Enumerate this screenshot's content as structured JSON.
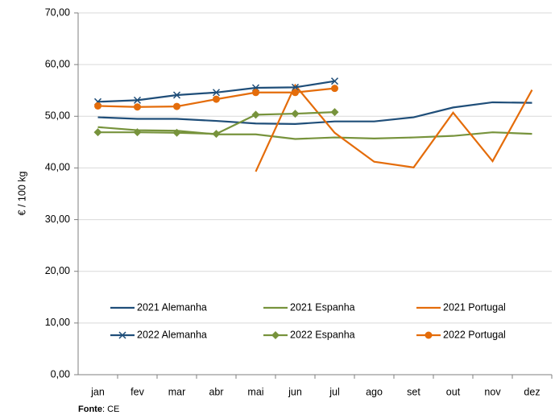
{
  "chart_data": {
    "type": "line",
    "y_label": "€ / 100 kg",
    "source": {
      "label": "Fonte",
      "text": ": CE"
    },
    "categories": [
      "jan",
      "fev",
      "mar",
      "abr",
      "mai",
      "jun",
      "jul",
      "ago",
      "set",
      "out",
      "nov",
      "dez"
    ],
    "ylim": [
      0,
      70
    ],
    "yticks": [
      {
        "value": 0,
        "label": "0,00"
      },
      {
        "value": 10,
        "label": "10,00"
      },
      {
        "value": 20,
        "label": "20,00"
      },
      {
        "value": 30,
        "label": "30,00"
      },
      {
        "value": 40,
        "label": "40,00"
      },
      {
        "value": 50,
        "label": "50,00"
      },
      {
        "value": 60,
        "label": "60,00"
      },
      {
        "value": 70,
        "label": "70,00"
      }
    ],
    "grid": true,
    "series": [
      {
        "name": "2021 Alemanha",
        "color": "#1f4e79",
        "marker": "none",
        "values": [
          49.8,
          49.5,
          49.5,
          49.1,
          48.6,
          48.5,
          49.0,
          49.0,
          49.8,
          51.7,
          52.7,
          52.6
        ]
      },
      {
        "name": "2021 Espanha",
        "color": "#77933c",
        "marker": "none",
        "values": [
          47.9,
          47.3,
          47.2,
          46.5,
          46.5,
          45.6,
          45.9,
          45.7,
          45.9,
          46.2,
          46.9,
          46.6
        ]
      },
      {
        "name": "2021 Portugal",
        "color": "#e46c0a",
        "marker": "none",
        "values": [
          null,
          null,
          null,
          null,
          39.3,
          56.0,
          46.8,
          41.2,
          40.1,
          50.7,
          41.3,
          55.1
        ]
      },
      {
        "name": "2022 Alemanha",
        "color": "#1f4e79",
        "marker": "x",
        "values": [
          52.8,
          53.1,
          54.1,
          54.6,
          55.5,
          55.6,
          56.8,
          null,
          null,
          null,
          null,
          null
        ]
      },
      {
        "name": "2022 Espanha",
        "color": "#77933c",
        "marker": "diamond",
        "values": [
          46.9,
          46.9,
          46.8,
          46.6,
          50.3,
          50.5,
          50.8,
          null,
          null,
          null,
          null,
          null
        ]
      },
      {
        "name": "2022 Portugal",
        "color": "#e46c0a",
        "marker": "circle",
        "values": [
          52.0,
          51.8,
          51.9,
          53.3,
          54.6,
          54.6,
          55.4,
          null,
          null,
          null,
          null,
          null
        ]
      }
    ]
  }
}
